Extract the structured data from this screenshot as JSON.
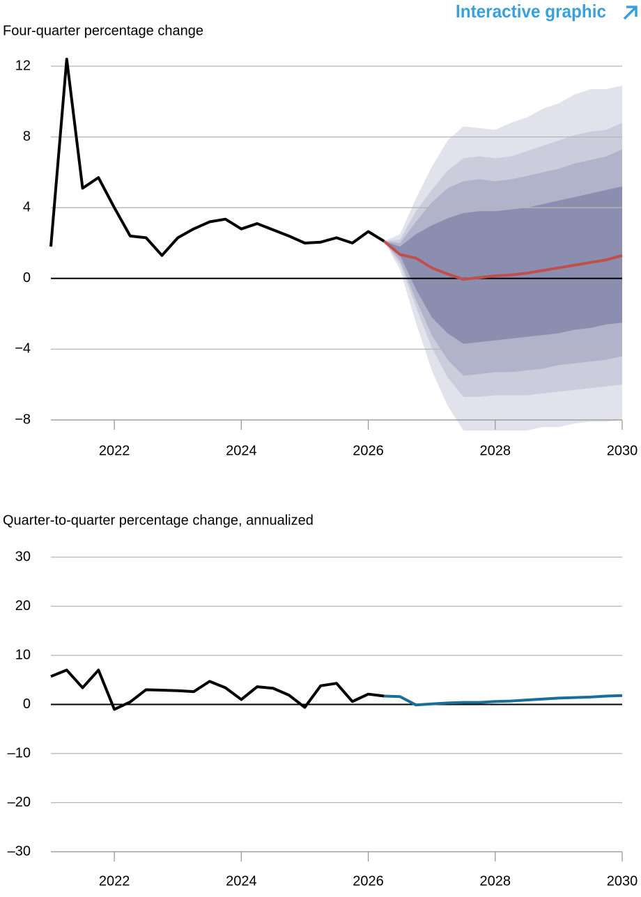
{
  "header": {
    "link": "Interactive graphic"
  },
  "chart_data": [
    {
      "type": "fan",
      "y_label": "Four-quarter percentage change",
      "xlim": [
        2021,
        2030
      ],
      "xticks": [
        2022,
        2024,
        2026,
        2028,
        2030
      ],
      "ylim": [
        -8,
        12
      ],
      "yticks": [
        {
          "value": -8,
          "label": "−8"
        },
        {
          "value": -4,
          "label": "−4"
        },
        0,
        4,
        8,
        12
      ],
      "grid": true,
      "bands": [
        {
          "color": "#e2e2ec",
          "x": [
            2026.25,
            2026.5,
            2026.75,
            2027,
            2027.25,
            2027.5,
            2027.75,
            2028,
            2028.25,
            2028.5,
            2028.75,
            2029,
            2029.25,
            2029.5,
            2029.75,
            2030
          ],
          "upper": [
            2.1,
            2.5,
            4.5,
            6.3,
            7.8,
            8.6,
            8.5,
            8.4,
            8.8,
            9.1,
            9.6,
            9.9,
            10.4,
            10.7,
            10.7,
            10.9
          ],
          "lower": [
            2.1,
            0.5,
            -2.5,
            -5.2,
            -7.2,
            -8.6,
            -8.6,
            -8.6,
            -8.6,
            -8.6,
            -8.4,
            -8.4,
            -8.2,
            -8.1,
            -8.1,
            -8.0
          ]
        },
        {
          "color": "#cbcddd",
          "x": [
            2026.25,
            2026.5,
            2026.75,
            2027,
            2027.25,
            2027.5,
            2027.75,
            2028,
            2028.25,
            2028.5,
            2028.75,
            2029,
            2029.25,
            2029.5,
            2029.75,
            2030
          ],
          "upper": [
            2.1,
            2.2,
            3.8,
            5.0,
            6.1,
            6.8,
            6.9,
            6.8,
            6.9,
            7.2,
            7.5,
            7.8,
            8.1,
            8.3,
            8.4,
            8.8
          ],
          "lower": [
            2.1,
            0.8,
            -1.6,
            -3.9,
            -5.6,
            -6.7,
            -6.7,
            -6.6,
            -6.6,
            -6.6,
            -6.5,
            -6.4,
            -6.3,
            -6.2,
            -6.1,
            -6.0
          ]
        },
        {
          "color": "#b1b3cb",
          "x": [
            2026.25,
            2026.5,
            2026.75,
            2027,
            2027.25,
            2027.5,
            2027.75,
            2028,
            2028.25,
            2028.5,
            2028.75,
            2029,
            2029.25,
            2029.5,
            2029.75,
            2030
          ],
          "upper": [
            2.1,
            2.0,
            3.2,
            4.3,
            5.1,
            5.5,
            5.6,
            5.5,
            5.6,
            5.8,
            6.0,
            6.2,
            6.5,
            6.7,
            6.9,
            7.3
          ],
          "lower": [
            2.1,
            1.0,
            -1.2,
            -3.2,
            -4.6,
            -5.5,
            -5.4,
            -5.3,
            -5.3,
            -5.2,
            -5.1,
            -4.9,
            -4.8,
            -4.7,
            -4.6,
            -4.4
          ]
        },
        {
          "color": "#8c8eb0",
          "x": [
            2026.25,
            2026.5,
            2026.75,
            2027,
            2027.25,
            2027.5,
            2027.75,
            2028,
            2028.25,
            2028.5,
            2028.75,
            2029,
            2029.25,
            2029.5,
            2029.75,
            2030
          ],
          "upper": [
            2.1,
            1.8,
            2.5,
            3.0,
            3.4,
            3.7,
            3.8,
            3.8,
            3.9,
            4.0,
            4.2,
            4.4,
            4.6,
            4.8,
            5.0,
            5.2
          ],
          "lower": [
            2.1,
            1.3,
            -0.6,
            -2.2,
            -3.1,
            -3.7,
            -3.6,
            -3.5,
            -3.4,
            -3.3,
            -3.2,
            -3.1,
            -2.9,
            -2.8,
            -2.6,
            -2.5
          ]
        }
      ],
      "series": [
        {
          "color": "#000000",
          "x": [
            2021,
            2021.25,
            2021.5,
            2021.75,
            2022,
            2022.25,
            2022.5,
            2022.75,
            2023,
            2023.25,
            2023.5,
            2023.75,
            2024,
            2024.25,
            2024.5,
            2024.75,
            2025,
            2025.25,
            2025.5,
            2025.75,
            2026,
            2026.25
          ],
          "values": [
            1.8,
            12.4,
            5.1,
            5.7,
            4.0,
            2.4,
            2.3,
            1.3,
            2.3,
            2.8,
            3.2,
            3.35,
            2.8,
            3.1,
            2.75,
            2.4,
            2.0,
            2.05,
            2.3,
            2.0,
            2.65,
            2.1
          ]
        },
        {
          "color": "#c0504d",
          "x": [
            2026.25,
            2026.5,
            2026.75,
            2027,
            2027.25,
            2027.5,
            2027.75,
            2028,
            2028.25,
            2028.5,
            2028.75,
            2029,
            2029.25,
            2029.5,
            2029.75,
            2030
          ],
          "values": [
            2.1,
            1.35,
            1.15,
            0.6,
            0.25,
            -0.05,
            0.05,
            0.15,
            0.2,
            0.3,
            0.45,
            0.6,
            0.75,
            0.9,
            1.05,
            1.3
          ]
        }
      ]
    },
    {
      "type": "line",
      "y_label": "Quarter-to-quarter percentage change, annualized",
      "xlim": [
        2021,
        2030
      ],
      "xticks": [
        2022,
        2024,
        2026,
        2028,
        2030
      ],
      "ylim": [
        -30,
        30
      ],
      "yticks": [
        {
          "value": -30,
          "label": "–30"
        },
        {
          "value": -20,
          "label": "–20"
        },
        {
          "value": -10,
          "label": "–10"
        },
        0,
        10,
        20,
        30
      ],
      "grid": true,
      "series": [
        {
          "color": "#000000",
          "x": [
            2021,
            2021.25,
            2021.5,
            2021.75,
            2022,
            2022.25,
            2022.5,
            2022.75,
            2023,
            2023.25,
            2023.5,
            2023.75,
            2024,
            2024.25,
            2024.5,
            2024.75,
            2025,
            2025.25,
            2025.5,
            2025.75,
            2026,
            2026.25
          ],
          "values": [
            5.7,
            7.0,
            3.4,
            7.0,
            -1.0,
            0.5,
            3.0,
            2.9,
            2.8,
            2.6,
            4.7,
            3.4,
            1.0,
            3.6,
            3.3,
            1.9,
            -0.6,
            3.8,
            4.3,
            0.6,
            2.1,
            1.7
          ]
        },
        {
          "color": "#1a6f9a",
          "x": [
            2026.25,
            2026.5,
            2026.75,
            2027,
            2027.25,
            2027.5,
            2027.75,
            2028,
            2028.25,
            2028.5,
            2028.75,
            2029,
            2029.25,
            2029.5,
            2029.75,
            2030
          ],
          "values": [
            1.7,
            1.6,
            -0.1,
            0.1,
            0.3,
            0.4,
            0.4,
            0.6,
            0.7,
            0.9,
            1.1,
            1.3,
            1.4,
            1.5,
            1.7,
            1.8
          ]
        }
      ]
    }
  ]
}
